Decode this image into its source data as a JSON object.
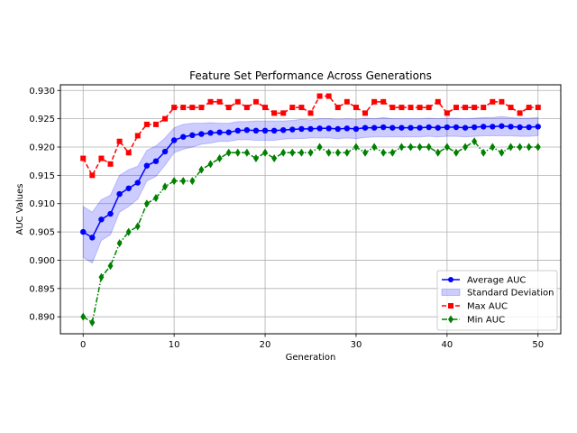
{
  "chart_data": {
    "type": "line",
    "title": "Feature Set Performance Across Generations",
    "xlabel": "Generation",
    "ylabel": "AUC Values",
    "xlim": [
      -2.5,
      52.5
    ],
    "ylim": [
      0.887,
      0.931
    ],
    "x_ticks": [
      0,
      10,
      20,
      30,
      40,
      50
    ],
    "y_ticks": [
      0.89,
      0.895,
      0.9,
      0.905,
      0.91,
      0.915,
      0.92,
      0.925,
      0.93
    ],
    "y_tick_labels": [
      "0.890",
      "0.895",
      "0.900",
      "0.905",
      "0.910",
      "0.915",
      "0.920",
      "0.925",
      "0.930"
    ],
    "grid": true,
    "legend_position": "lower-right",
    "x": [
      0,
      1,
      2,
      3,
      4,
      5,
      6,
      7,
      8,
      9,
      10,
      11,
      12,
      13,
      14,
      15,
      16,
      17,
      18,
      19,
      20,
      21,
      22,
      23,
      24,
      25,
      26,
      27,
      28,
      29,
      30,
      31,
      32,
      33,
      34,
      35,
      36,
      37,
      38,
      39,
      40,
      41,
      42,
      43,
      44,
      45,
      46,
      47,
      48,
      49,
      50
    ],
    "series": [
      {
        "name": "Average AUC",
        "style": "solid-circle",
        "color": "#0000ff",
        "values": [
          0.905,
          0.904,
          0.9072,
          0.9082,
          0.9117,
          0.9127,
          0.9137,
          0.9167,
          0.9175,
          0.9192,
          0.9212,
          0.9218,
          0.9221,
          0.9223,
          0.9225,
          0.9226,
          0.9226,
          0.9229,
          0.923,
          0.9229,
          0.9229,
          0.9229,
          0.923,
          0.9231,
          0.9232,
          0.9232,
          0.9233,
          0.9233,
          0.9232,
          0.9233,
          0.9232,
          0.9234,
          0.9234,
          0.9235,
          0.9234,
          0.9234,
          0.9234,
          0.9234,
          0.9235,
          0.9234,
          0.9235,
          0.9235,
          0.9234,
          0.9235,
          0.9236,
          0.9236,
          0.9237,
          0.9236,
          0.9235,
          0.9235,
          0.9236
        ]
      },
      {
        "name": "Standard Deviation",
        "style": "band",
        "color": "#0000ff",
        "lower": [
          0.9005,
          0.8995,
          0.9035,
          0.9045,
          0.9085,
          0.9095,
          0.9108,
          0.914,
          0.9148,
          0.9168,
          0.919,
          0.9196,
          0.92,
          0.9205,
          0.9207,
          0.921,
          0.921,
          0.9213,
          0.9213,
          0.9212,
          0.9212,
          0.9212,
          0.9214,
          0.9215,
          0.9215,
          0.9216,
          0.9216,
          0.9216,
          0.9215,
          0.9216,
          0.9215,
          0.9217,
          0.9218,
          0.9218,
          0.9218,
          0.9218,
          0.9218,
          0.9218,
          0.9219,
          0.9218,
          0.9219,
          0.9219,
          0.9218,
          0.9219,
          0.922,
          0.922,
          0.922,
          0.922,
          0.9219,
          0.9219,
          0.922
        ],
        "upper": [
          0.9095,
          0.9085,
          0.9107,
          0.9115,
          0.915,
          0.916,
          0.9166,
          0.9194,
          0.9202,
          0.9216,
          0.9234,
          0.924,
          0.9242,
          0.9242,
          0.9243,
          0.9242,
          0.9242,
          0.9245,
          0.9245,
          0.9246,
          0.9246,
          0.9246,
          0.9246,
          0.9247,
          0.9249,
          0.9248,
          0.925,
          0.925,
          0.9249,
          0.925,
          0.9249,
          0.9251,
          0.925,
          0.9252,
          0.925,
          0.925,
          0.925,
          0.925,
          0.9251,
          0.925,
          0.9251,
          0.9251,
          0.925,
          0.9251,
          0.9252,
          0.9252,
          0.9254,
          0.9252,
          0.9251,
          0.9251,
          0.9252
        ]
      },
      {
        "name": "Max AUC",
        "style": "dashed-square",
        "color": "#ff0000",
        "values": [
          0.918,
          0.915,
          0.918,
          0.917,
          0.921,
          0.919,
          0.922,
          0.924,
          0.924,
          0.925,
          0.927,
          0.927,
          0.927,
          0.927,
          0.928,
          0.928,
          0.927,
          0.928,
          0.927,
          0.928,
          0.927,
          0.926,
          0.926,
          0.927,
          0.927,
          0.926,
          0.929,
          0.929,
          0.927,
          0.928,
          0.927,
          0.926,
          0.928,
          0.928,
          0.927,
          0.927,
          0.927,
          0.927,
          0.927,
          0.928,
          0.926,
          0.927,
          0.927,
          0.927,
          0.927,
          0.928,
          0.928,
          0.927,
          0.926,
          0.927,
          0.927
        ]
      },
      {
        "name": "Min AUC",
        "style": "dashdot-diamond",
        "color": "#008000",
        "values": [
          0.89,
          0.889,
          0.897,
          0.899,
          0.903,
          0.905,
          0.906,
          0.91,
          0.911,
          0.913,
          0.914,
          0.914,
          0.914,
          0.916,
          0.917,
          0.918,
          0.919,
          0.919,
          0.919,
          0.918,
          0.919,
          0.918,
          0.919,
          0.919,
          0.919,
          0.919,
          0.92,
          0.919,
          0.919,
          0.919,
          0.92,
          0.919,
          0.92,
          0.919,
          0.919,
          0.92,
          0.92,
          0.92,
          0.92,
          0.919,
          0.92,
          0.919,
          0.92,
          0.921,
          0.919,
          0.92,
          0.919,
          0.92,
          0.92,
          0.92,
          0.92
        ]
      }
    ],
    "colors": {
      "average": "#0000ff",
      "band": "#0000ff",
      "max": "#ff0000",
      "min": "#008000",
      "grid": "#b0b0b0"
    }
  }
}
